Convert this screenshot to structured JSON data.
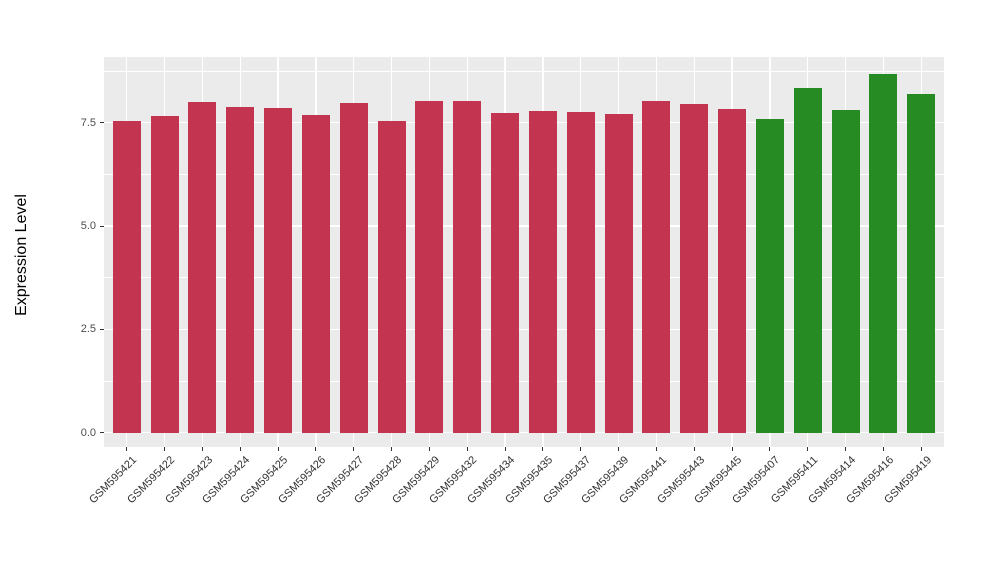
{
  "chart_data": {
    "type": "bar",
    "title": "",
    "xlabel": "",
    "ylabel": "Expression Level",
    "categories": [
      "GSM595421",
      "GSM595422",
      "GSM595423",
      "GSM595424",
      "GSM595425",
      "GSM595426",
      "GSM595427",
      "GSM595428",
      "GSM595429",
      "GSM595432",
      "GSM595434",
      "GSM595435",
      "GSM595437",
      "GSM595439",
      "GSM595441",
      "GSM595443",
      "GSM595445",
      "GSM595407",
      "GSM595411",
      "GSM595414",
      "GSM595416",
      "GSM595419"
    ],
    "values": [
      7.55,
      7.67,
      8.0,
      7.87,
      7.85,
      7.68,
      7.97,
      7.55,
      8.03,
      8.02,
      7.73,
      7.78,
      7.76,
      7.72,
      8.03,
      7.96,
      7.83,
      7.58,
      8.35,
      7.81,
      8.67,
      8.2
    ],
    "bar_colors": [
      "#C33450",
      "#C33450",
      "#C33450",
      "#C33450",
      "#C33450",
      "#C33450",
      "#C33450",
      "#C33450",
      "#C33450",
      "#C33450",
      "#C33450",
      "#C33450",
      "#C33450",
      "#C33450",
      "#C33450",
      "#C33450",
      "#C33450",
      "#268B22",
      "#268B22",
      "#268B22",
      "#268B22",
      "#268B22"
    ],
    "group_colors": {
      "left_group": "#C33450",
      "right_group": "#268B22"
    },
    "ylim": [
      -0.35,
      9.1
    ],
    "yticks": [
      0.0,
      2.5,
      5.0,
      7.5
    ],
    "ytick_labels": [
      "0.0",
      "2.5",
      "5.0",
      "7.5"
    ],
    "yticks_minor": [
      1.25,
      3.75,
      6.25,
      8.75
    ],
    "grid": "on",
    "legend": "none",
    "panel_bg": "#EBEBEB",
    "grid_color": "#FFFFFF",
    "tick_label_color": "#4D4D4D",
    "axis_title_color": "#000000"
  }
}
